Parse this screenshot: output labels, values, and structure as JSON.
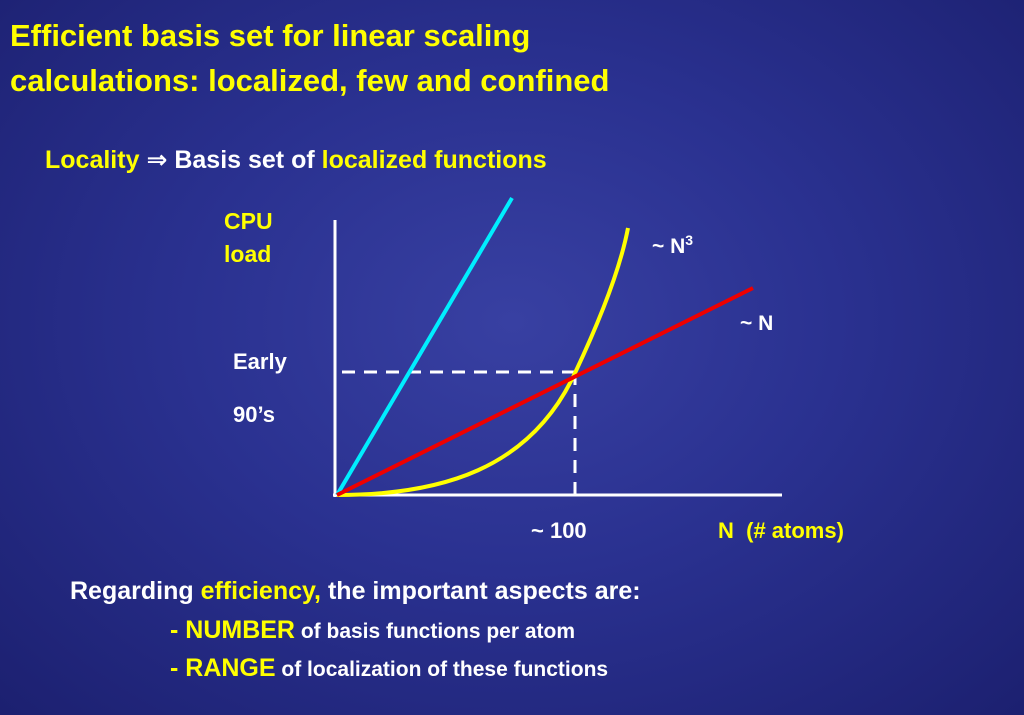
{
  "title": {
    "line1": "Efficient basis set for linear scaling",
    "line2": "calculations: localized, few and confined"
  },
  "subtitle": {
    "locality": "Locality",
    "arrow": "⇒",
    "basis": "Basis set of",
    "localized": "localized functions"
  },
  "diagram": {
    "y_label": [
      "CPU",
      "load"
    ],
    "era_label": [
      "Early",
      "90’s"
    ],
    "curve_labels": {
      "cubic": "~ N",
      "cubic_exponent": "3",
      "linear": "~ N"
    },
    "crossover": "~ 100",
    "x_label": "N  (# atoms)"
  },
  "body": {
    "intro": [
      "Regarding",
      "efficiency,",
      "the important aspects are:"
    ],
    "items": [
      {
        "key": "- NUMBER",
        "text": "of basis functions per atom"
      },
      {
        "key": "- RANGE",
        "text": "of localization of these functions"
      }
    ]
  }
}
